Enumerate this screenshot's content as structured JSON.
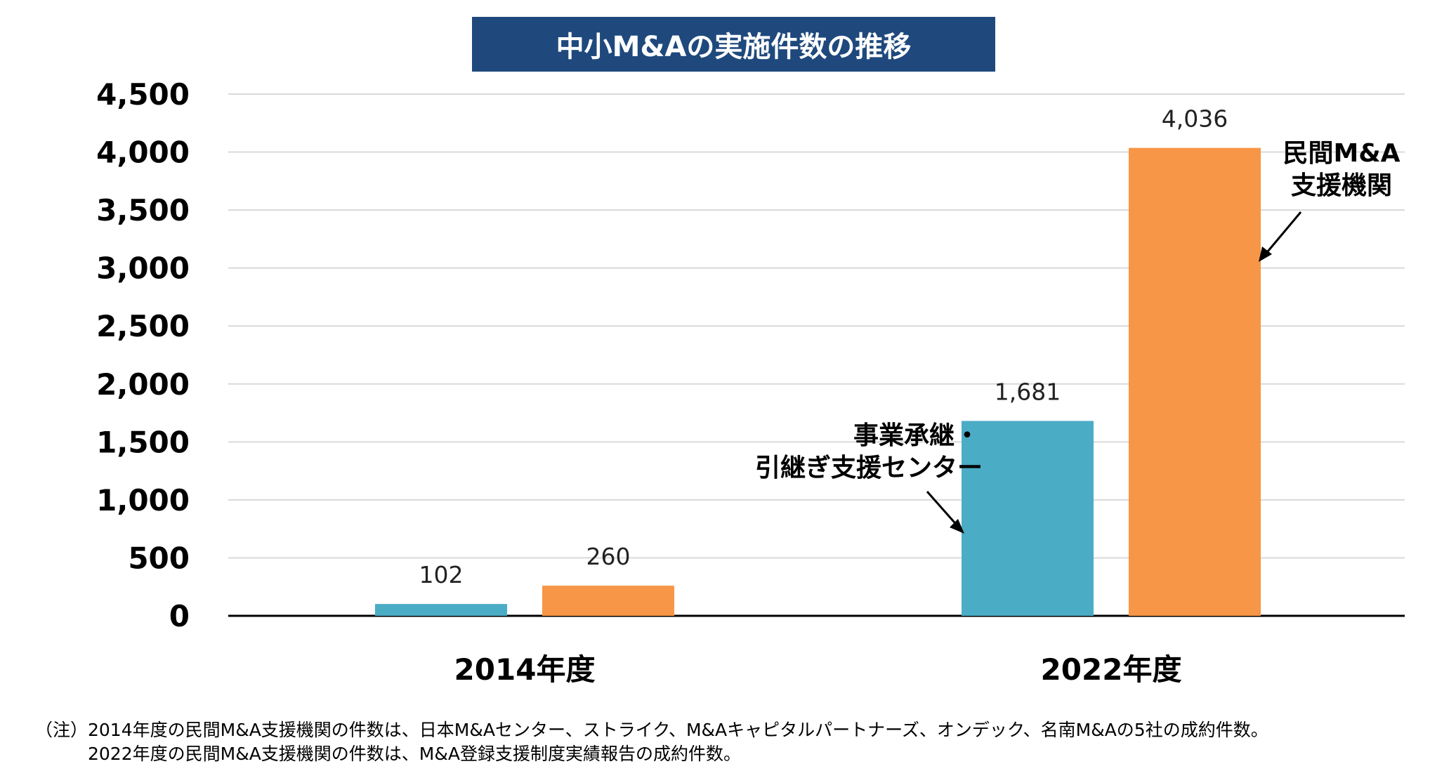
{
  "chart_data": {
    "type": "bar",
    "title": "中小M&Aの実施件数の推移",
    "categories": [
      "2014年度",
      "2022年度"
    ],
    "series": [
      {
        "name": "事業承継・引継ぎ支援センター",
        "values": [
          102,
          1681
        ],
        "color": "#4bacc6"
      },
      {
        "name": "民間M&A支援機関",
        "values": [
          260,
          4036
        ],
        "color": "#f79646"
      }
    ],
    "data_labels": [
      [
        "102",
        "1,681"
      ],
      [
        "260",
        "4,036"
      ]
    ],
    "ylim": [
      0,
      4500
    ],
    "yticks": [
      0,
      500,
      1000,
      1500,
      2000,
      2500,
      3000,
      3500,
      4000,
      4500
    ],
    "ytick_labels": [
      "0",
      "500",
      "1,000",
      "1,500",
      "2,000",
      "2,500",
      "3,000",
      "3,500",
      "4,000",
      "4,500"
    ],
    "xlabel": "",
    "ylabel": "",
    "grid": true,
    "legend": "none",
    "annotations": {
      "center_line1": "事業承継・",
      "center_line2": "引継ぎ支援センター",
      "private_line1": "民間M&A",
      "private_line2": "支援機関"
    }
  },
  "note": {
    "line1": "（注）2014年度の民間M&A支援機関の件数は、日本M&Aセンター、ストライク、M&Aキャピタルパートナーズ、オンデック、名南M&Aの5社の成約件数。",
    "line2": "2022年度の民間M&A支援機関の件数は、M&A登録支援制度実績報告の成約件数。"
  },
  "colors": {
    "title_bg": "#1f497d",
    "grid": "#d9d9d9",
    "axis": "#000000"
  }
}
